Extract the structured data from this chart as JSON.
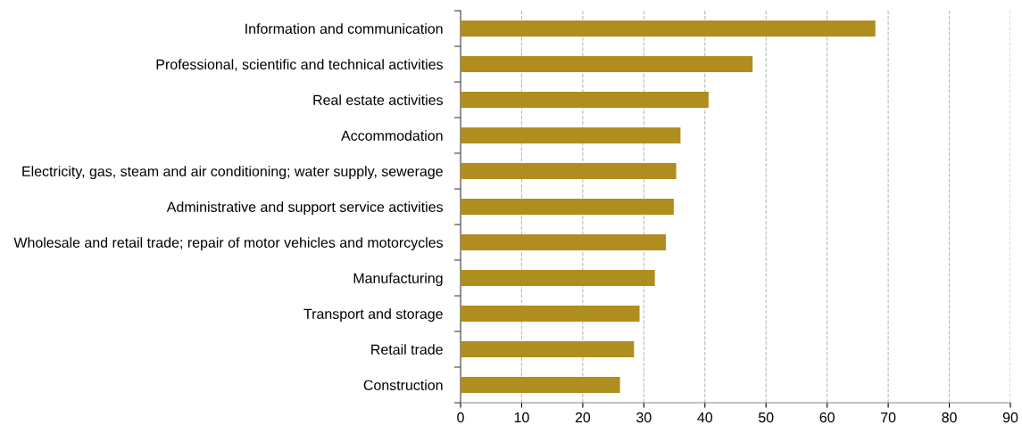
{
  "chart_data": {
    "type": "bar",
    "orientation": "horizontal",
    "categories": [
      "Information and communication",
      "Professional, scientific and technical activities",
      "Real estate activities",
      "Accommodation",
      "Electricity, gas, steam and air conditioning; water supply, sewerage",
      "Administrative and support service activities",
      "Wholesale and retail trade; repair of motor vehicles and motorcycles",
      "Manufacturing",
      "Transport and storage",
      "Retail trade",
      "Construction"
    ],
    "values": [
      67.9,
      47.8,
      40.6,
      36.0,
      35.3,
      34.9,
      33.6,
      31.8,
      29.3,
      28.4,
      26.1
    ],
    "color": "#b08d1f",
    "xlim": [
      0,
      90
    ],
    "xticks": [
      0,
      10,
      20,
      30,
      40,
      50,
      60,
      70,
      80,
      90
    ],
    "grid": "x",
    "legend": false
  }
}
